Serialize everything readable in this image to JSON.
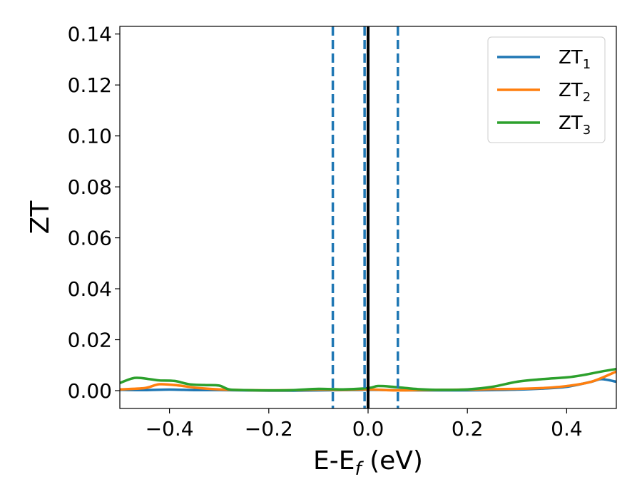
{
  "chart_data": {
    "type": "line",
    "xlabel": "E-E",
    "xlabel_sub": "f",
    "xlabel_unit": " (eV)",
    "ylabel": "ZT",
    "xlim": [
      -0.5,
      0.5
    ],
    "ylim": [
      -0.007,
      0.143
    ],
    "xticks": [
      -0.4,
      -0.2,
      0.0,
      0.2,
      0.4
    ],
    "xtick_labels": [
      "−0.4",
      "−0.2",
      "0.0",
      "0.2",
      "0.4"
    ],
    "yticks": [
      0.0,
      0.02,
      0.04,
      0.06,
      0.08,
      0.1,
      0.12,
      0.14
    ],
    "ytick_labels": [
      "0.00",
      "0.02",
      "0.04",
      "0.06",
      "0.08",
      "0.10",
      "0.12",
      "0.14"
    ],
    "grid": false,
    "legend_position": "top-right",
    "series": [
      {
        "name": "ZT",
        "name_sub": "1",
        "color": "#1f77b4",
        "x": [
          -0.5,
          -0.45,
          -0.4,
          -0.35,
          -0.3,
          -0.25,
          -0.2,
          -0.15,
          -0.1,
          -0.05,
          0.0,
          0.05,
          0.1,
          0.15,
          0.2,
          0.25,
          0.3,
          0.35,
          0.4,
          0.45,
          0.47,
          0.5
        ],
        "y": [
          0.0003,
          0.0002,
          0.0004,
          0.0002,
          0.0002,
          0.0001,
          0.0,
          0.0,
          0.0001,
          0.0002,
          0.0003,
          0.0002,
          0.0001,
          0.0001,
          0.0001,
          0.0002,
          0.0004,
          0.0008,
          0.0015,
          0.0035,
          0.0045,
          0.0035
        ]
      },
      {
        "name": "ZT",
        "name_sub": "2",
        "color": "#ff7f0e",
        "x": [
          -0.5,
          -0.45,
          -0.42,
          -0.38,
          -0.35,
          -0.3,
          -0.25,
          -0.2,
          -0.15,
          -0.1,
          -0.05,
          0.0,
          0.05,
          0.1,
          0.15,
          0.2,
          0.25,
          0.3,
          0.35,
          0.4,
          0.45,
          0.5
        ],
        "y": [
          0.0005,
          0.001,
          0.0025,
          0.002,
          0.0012,
          0.0005,
          0.0002,
          0.0001,
          0.0002,
          0.0004,
          0.0003,
          0.0005,
          0.0001,
          0.0002,
          0.0003,
          0.0004,
          0.0006,
          0.0007,
          0.001,
          0.0018,
          0.0035,
          0.0075
        ]
      },
      {
        "name": "ZT",
        "name_sub": "3",
        "color": "#2ca02c",
        "x": [
          -0.5,
          -0.47,
          -0.44,
          -0.42,
          -0.39,
          -0.36,
          -0.33,
          -0.3,
          -0.28,
          -0.25,
          -0.2,
          -0.15,
          -0.1,
          -0.05,
          0.0,
          0.02,
          0.05,
          0.1,
          0.15,
          0.2,
          0.25,
          0.3,
          0.35,
          0.4,
          0.43,
          0.47,
          0.5
        ],
        "y": [
          0.003,
          0.005,
          0.0045,
          0.004,
          0.0038,
          0.0025,
          0.0022,
          0.002,
          0.0005,
          0.0002,
          0.0001,
          0.0002,
          0.0007,
          0.0005,
          0.001,
          0.0018,
          0.0015,
          0.0006,
          0.0003,
          0.0005,
          0.0015,
          0.0035,
          0.0045,
          0.0052,
          0.006,
          0.0075,
          0.0085
        ]
      }
    ],
    "vlines": [
      {
        "x": 0.0,
        "style": "solid",
        "color": "#000000"
      },
      {
        "x": -0.071,
        "style": "dashed",
        "color": "#1f77b4"
      },
      {
        "x": -0.007,
        "style": "dashed",
        "color": "#1f77b4"
      },
      {
        "x": 0.06,
        "style": "dashed",
        "color": "#1f77b4"
      }
    ]
  }
}
